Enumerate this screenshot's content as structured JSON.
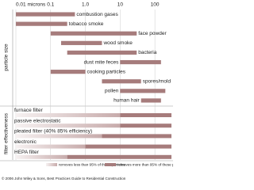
{
  "chart_data": {
    "type": "range-bar",
    "xscale": "log",
    "xlim": [
      0.01,
      300
    ],
    "xticks": [
      {
        "value": 0.01,
        "label": "0.01 microns"
      },
      0.1,
      {
        "value": 1,
        "label": "1.0"
      },
      10,
      100
    ],
    "grid": true,
    "color": "#a67c7c",
    "light_color": "#f3ecec",
    "sections": [
      {
        "label": "particle size",
        "categories": [
          "combustion gases",
          "tobacco smoke",
          "face powder",
          "wood smoke",
          "bacteria",
          "dust mite feces",
          "cooking particles",
          "spores/mold",
          "pollen",
          "human hair"
        ],
        "values": [
          [
            0.01,
            0.5
          ],
          [
            0.01,
            0.3
          ],
          [
            0.1,
            30
          ],
          [
            0.2,
            3
          ],
          [
            0.3,
            30
          ],
          [
            10,
            150
          ],
          [
            0.1,
            1
          ],
          [
            3,
            40
          ],
          [
            10,
            200
          ],
          [
            40,
            150
          ]
        ]
      },
      {
        "label": "filter effectiveness",
        "categories": [
          "furnace filter",
          "passive electrostatic",
          "pleated filter (40% 85% efficiency)",
          "electronic",
          "HEPA filter"
        ],
        "values": [
          10,
          10,
          3,
          1,
          0.3
        ]
      }
    ],
    "legend": [
      "removes less than 95% of these particles",
      "removes more than 95% of these particles"
    ],
    "footer": "© 2006 John Wiley & Sons, Best Practices Guide to Residential Construction"
  }
}
